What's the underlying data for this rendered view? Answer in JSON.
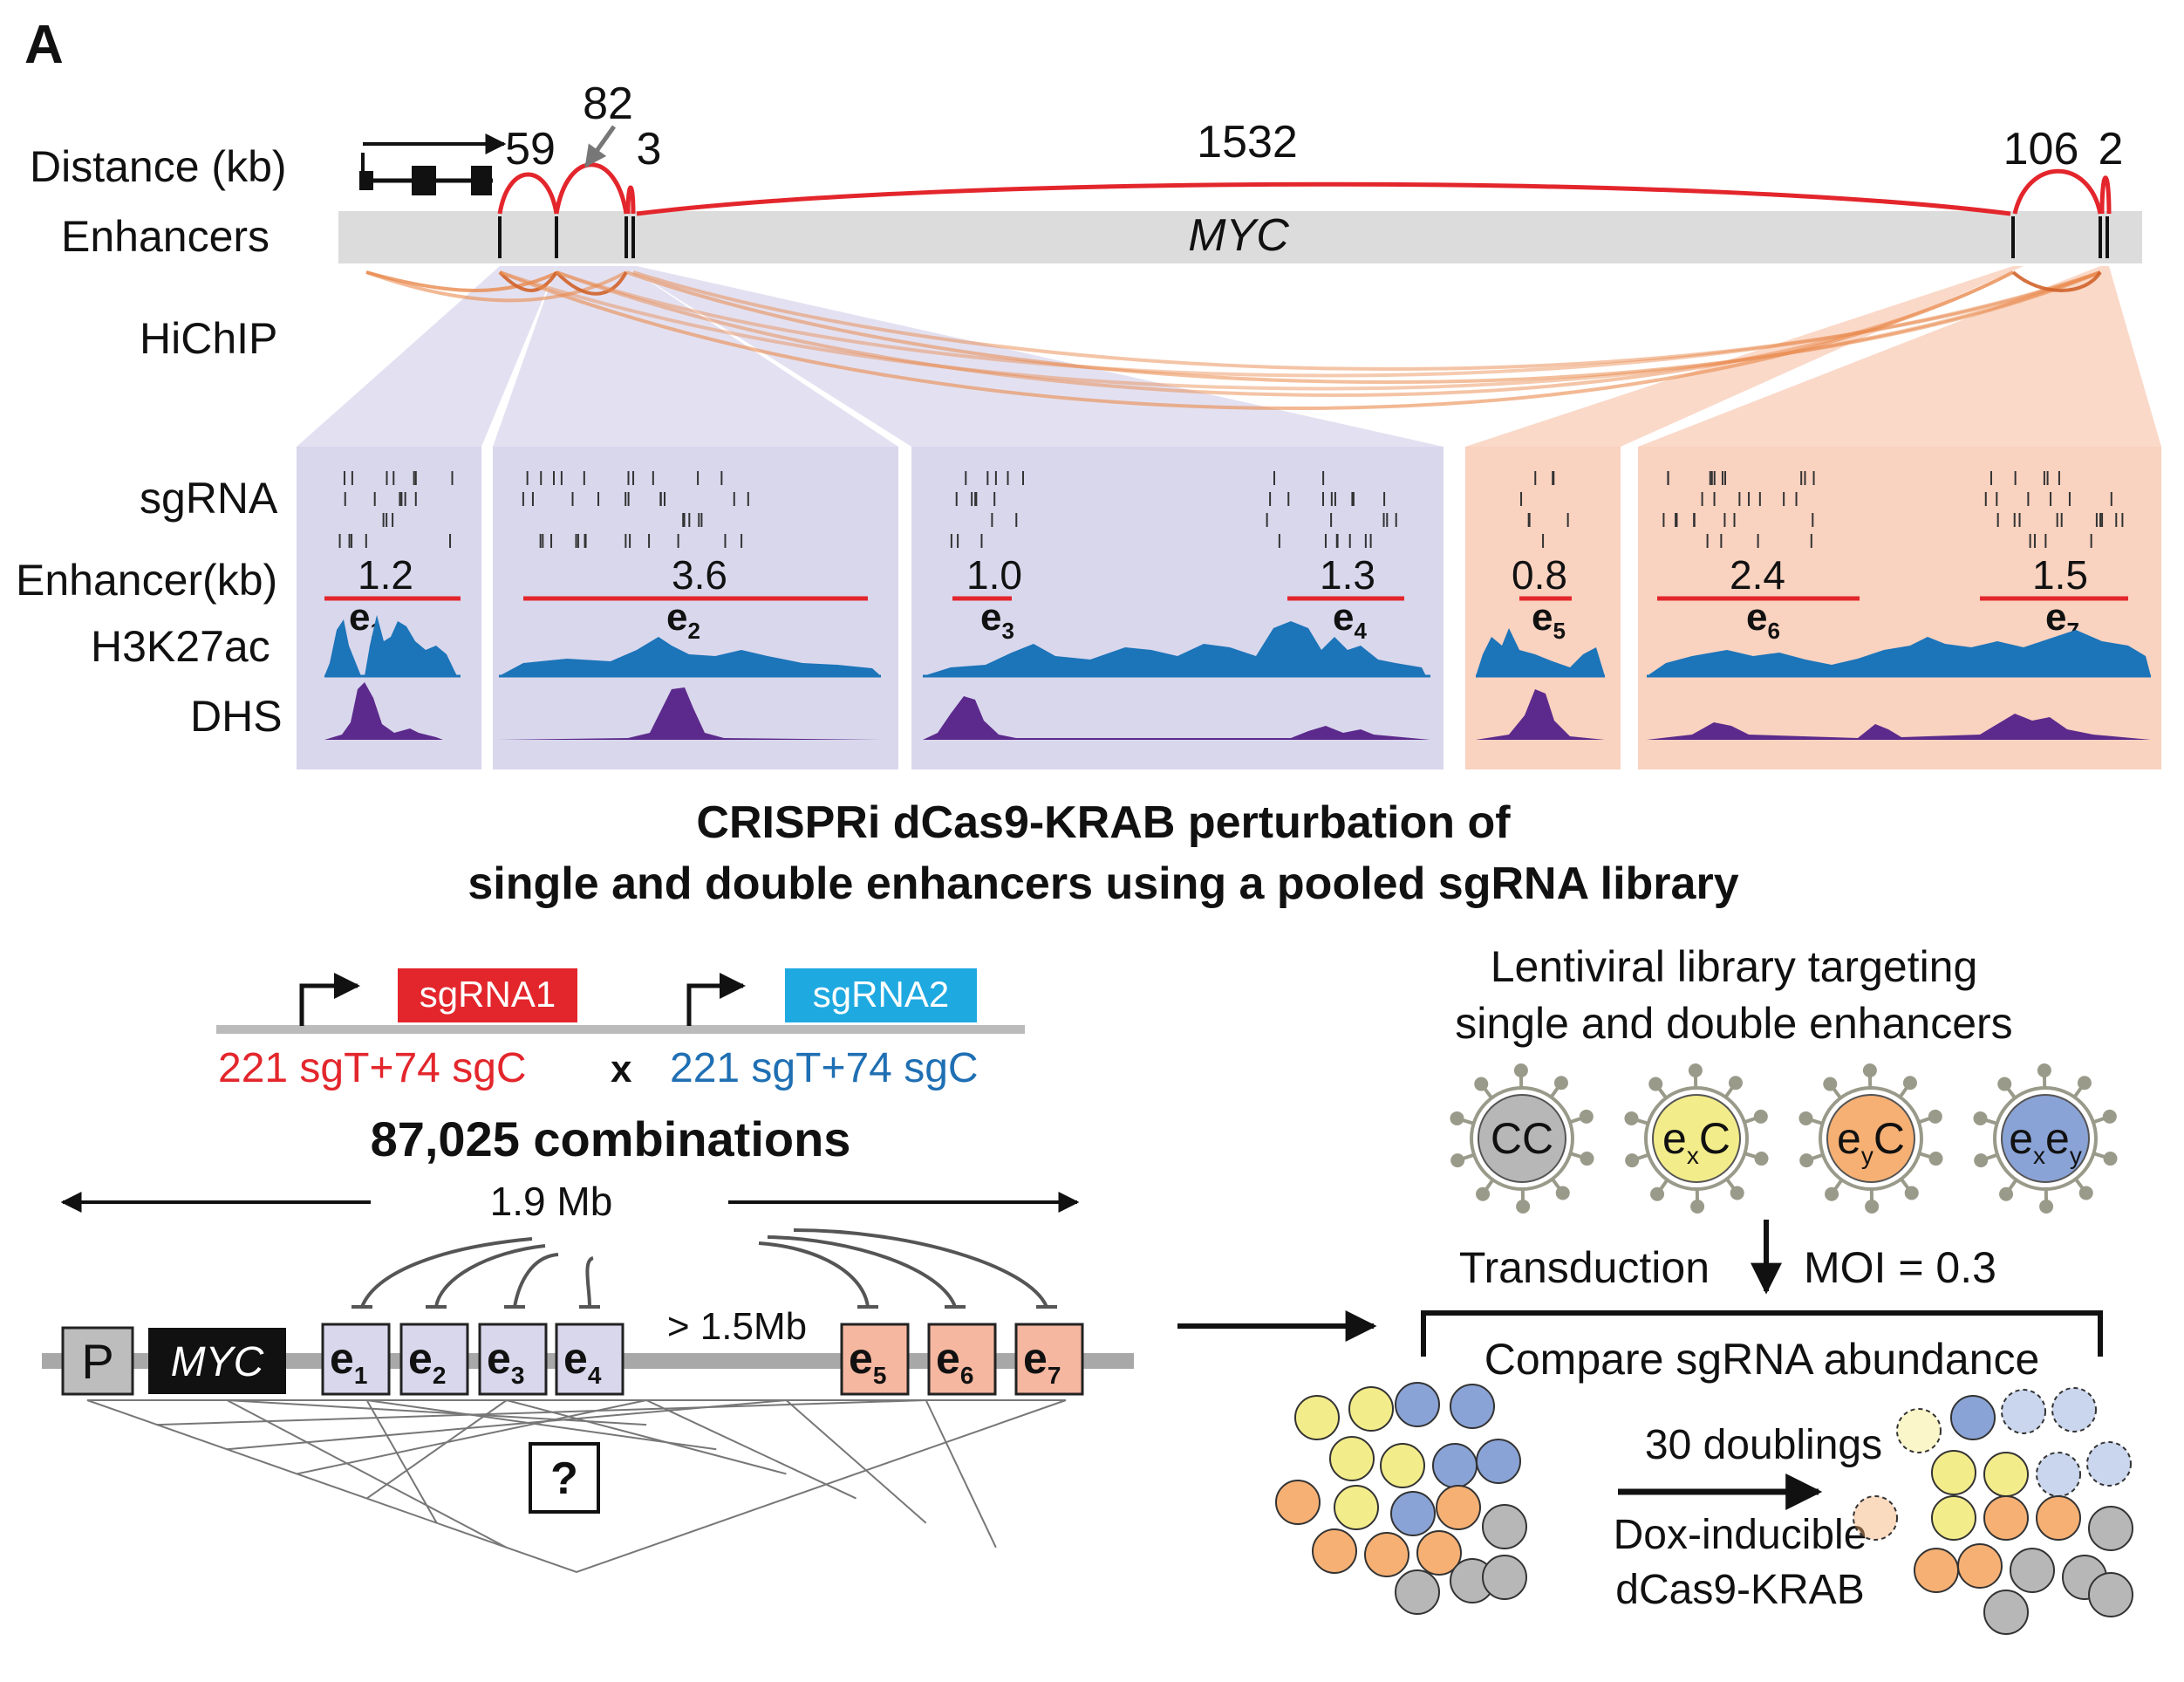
{
  "panel_label": "A",
  "track_labels": {
    "distance": "Distance (kb)",
    "enhancers": "Enhancers",
    "hichip": "HiChIP",
    "sgrna": "sgRNA",
    "enhancer_kb": "Enhancer(kb)",
    "h3k27ac": "H3K27ac",
    "dhs": "DHS"
  },
  "gene_name": "MYC",
  "distances": [
    "59",
    "82",
    "3",
    "1532",
    "106",
    "2"
  ],
  "enhancer_sizes": [
    {
      "size": "1.2",
      "label": "e",
      "sub": "1"
    },
    {
      "size": "3.6",
      "label": "e",
      "sub": "2"
    },
    {
      "size": "1.0",
      "label": "e",
      "sub": "3"
    },
    {
      "size": "1.3",
      "label": "e",
      "sub": "4"
    },
    {
      "size": "0.8",
      "label": "e",
      "sub": "5"
    },
    {
      "size": "2.4",
      "label": "e",
      "sub": "6"
    },
    {
      "size": "1.5",
      "label": "e",
      "sub": "7"
    }
  ],
  "headline": [
    "CRISPRi dCas9-KRAB perturbation of",
    "single and double enhancers using a pooled sgRNA library"
  ],
  "construct": {
    "sg1": "sgRNA1",
    "sg2": "sgRNA2",
    "lib1": "221 sgT+74 sgC",
    "times": "x",
    "lib2": "221 sgT+74 sgC",
    "combinations": "87,025 combinations",
    "span": "1.9 Mb",
    "gap": "> 1.5Mb",
    "promoter": "P",
    "gene": "MYC",
    "question": "?"
  },
  "library": {
    "title": [
      "Lentiviral library targeting",
      "single and double enhancers"
    ],
    "viruses": [
      {
        "main": "CC",
        "kind": "cc"
      },
      {
        "main": "e",
        "sub": "x",
        "tail": "C",
        "kind": "ex"
      },
      {
        "main": "e",
        "sub": "y",
        "tail": "C",
        "kind": "ey"
      },
      {
        "main": "e",
        "sub": "x",
        "main2": "e",
        "sub2": "y",
        "kind": "exey"
      }
    ],
    "transduction": "Transduction",
    "moi": "MOI = 0.3",
    "compare": "Compare sgRNA abundance",
    "doublings": "30 doublings",
    "dox": [
      "Dox-inducible",
      "dCas9-KRAB"
    ]
  },
  "colors": {
    "red": "#e3262c",
    "blue_text": "#1f6fb3",
    "sgrna2_box": "#1fa9e1",
    "purple_panel": "#d9d7ec",
    "peach_panel": "#f9d2c0",
    "h3k27ac": "#1c74b9",
    "dhs": "#5c2a8c",
    "hichip": "#e98a4d",
    "enh_purple_box": "#d9d7ec",
    "enh_peach_box": "#f5b7a0",
    "cell_yellow": "#f3ec8a",
    "cell_orange": "#f6b074",
    "cell_blue": "#8aa3d6",
    "cell_gray": "#b7b7b7"
  }
}
